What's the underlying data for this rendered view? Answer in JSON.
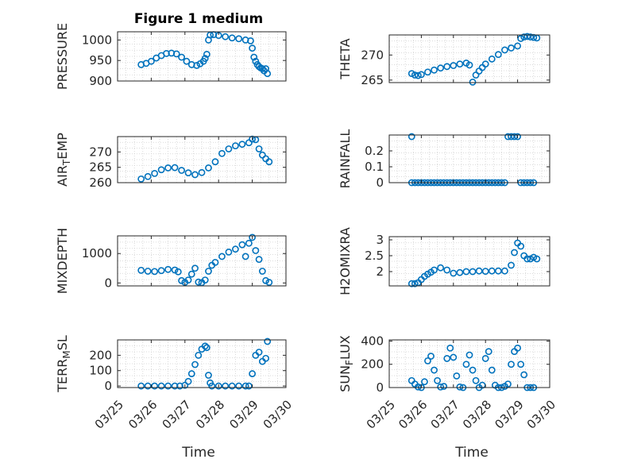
{
  "title": "Figure 1 medium",
  "xlabel": "Time",
  "xticklabels": [
    "03/25",
    "03/26",
    "03/27",
    "03/28",
    "03/29",
    "03/30"
  ],
  "colors": {
    "marker": "#0072BD",
    "axis": "#262626",
    "grid": "#d0d0d0"
  },
  "chart_data": [
    {
      "type": "scatter",
      "ylabel": "PRESSURE",
      "ylabel_sub": "",
      "ylabel_after": "",
      "ylim": [
        900,
        1020
      ],
      "yticks": [
        900,
        950,
        1000
      ],
      "xlim": [
        25,
        30
      ],
      "x": [
        25.7,
        25.85,
        26.0,
        26.15,
        26.3,
        26.45,
        26.6,
        26.75,
        26.9,
        27.05,
        27.2,
        27.35,
        27.45,
        27.55,
        27.6,
        27.65,
        27.7,
        27.75,
        27.85,
        28.0,
        28.2,
        28.4,
        28.6,
        28.8,
        28.95,
        29.0,
        29.05,
        29.1,
        29.15,
        29.2,
        29.25,
        29.3,
        29.35,
        29.4,
        29.45
      ],
      "y": [
        940,
        943,
        948,
        956,
        962,
        967,
        968,
        966,
        958,
        948,
        940,
        938,
        942,
        948,
        955,
        965,
        1000,
        1012,
        1013,
        1011,
        1008,
        1005,
        1003,
        1000,
        998,
        980,
        958,
        948,
        940,
        935,
        932,
        930,
        925,
        930,
        918
      ]
    },
    {
      "type": "scatter",
      "ylabel": "THETA",
      "ylabel_sub": "",
      "ylabel_after": "",
      "ylim": [
        264.5,
        274
      ],
      "yticks": [
        265,
        270
      ],
      "xlim": [
        25,
        30
      ],
      "x": [
        25.7,
        25.8,
        25.9,
        26.0,
        26.2,
        26.4,
        26.6,
        26.8,
        27.0,
        27.2,
        27.4,
        27.5,
        27.6,
        27.7,
        27.8,
        27.9,
        28.0,
        28.2,
        28.4,
        28.6,
        28.8,
        29.0,
        29.1,
        29.2,
        29.3,
        29.4,
        29.5,
        29.6
      ],
      "y": [
        266.3,
        266.0,
        265.9,
        266.1,
        266.6,
        267.0,
        267.4,
        267.7,
        267.9,
        268.2,
        268.4,
        268.0,
        264.6,
        266.0,
        266.8,
        267.5,
        268.2,
        269.2,
        270.1,
        271.0,
        271.4,
        271.8,
        273.3,
        273.6,
        273.7,
        273.6,
        273.5,
        273.4
      ]
    },
    {
      "type": "scatter",
      "ylabel": "AIR",
      "ylabel_sub": "T",
      "ylabel_after": "EMP",
      "ylim": [
        260,
        275
      ],
      "yticks": [
        260,
        265,
        270
      ],
      "xlim": [
        25,
        30
      ],
      "x": [
        25.7,
        25.9,
        26.1,
        26.3,
        26.5,
        26.7,
        26.9,
        27.1,
        27.3,
        27.5,
        27.7,
        27.9,
        28.1,
        28.3,
        28.5,
        28.7,
        28.9,
        29.0,
        29.1,
        29.2,
        29.3,
        29.4,
        29.5
      ],
      "y": [
        261.2,
        262.0,
        263.0,
        264.2,
        264.8,
        264.9,
        264.0,
        263.2,
        262.6,
        263.3,
        264.8,
        266.8,
        269.5,
        271.0,
        272.0,
        272.5,
        273.0,
        274.2,
        274.0,
        271.0,
        269.0,
        267.8,
        266.8
      ]
    },
    {
      "type": "scatter",
      "ylabel": "RAINFALL",
      "ylabel_sub": "",
      "ylabel_after": "",
      "ylim": [
        0,
        0.3
      ],
      "yticks": [
        0,
        0.1,
        0.2
      ],
      "xlim": [
        25,
        30
      ],
      "x": [
        25.7,
        25.7,
        25.8,
        25.9,
        26.0,
        26.1,
        26.2,
        26.3,
        26.4,
        26.5,
        26.6,
        26.7,
        26.8,
        26.9,
        27.0,
        27.1,
        27.2,
        27.3,
        27.4,
        27.5,
        27.6,
        27.7,
        27.8,
        27.9,
        28.0,
        28.1,
        28.2,
        28.3,
        28.4,
        28.5,
        28.6,
        28.7,
        28.8,
        28.9,
        29.0,
        29.1,
        29.2,
        29.3,
        29.4,
        29.5
      ],
      "y": [
        0.29,
        0,
        0,
        0,
        0,
        0,
        0,
        0,
        0,
        0,
        0,
        0,
        0,
        0,
        0,
        0,
        0,
        0,
        0,
        0,
        0,
        0,
        0,
        0,
        0,
        0,
        0,
        0,
        0,
        0,
        0,
        0.29,
        0.29,
        0.29,
        0.29,
        0,
        0,
        0,
        0,
        0
      ]
    },
    {
      "type": "scatter",
      "ylabel": "MIXDEPTH",
      "ylabel_sub": "",
      "ylabel_after": "",
      "ylim": [
        -100,
        1600
      ],
      "yticks": [
        0,
        1000
      ],
      "xlim": [
        25,
        30
      ],
      "x": [
        25.7,
        25.9,
        26.1,
        26.3,
        26.5,
        26.7,
        26.8,
        26.9,
        27.0,
        27.1,
        27.2,
        27.3,
        27.4,
        27.5,
        27.6,
        27.7,
        27.8,
        27.9,
        28.1,
        28.3,
        28.5,
        28.7,
        28.8,
        28.9,
        29.0,
        29.1,
        29.2,
        29.3,
        29.4,
        29.5
      ],
      "y": [
        430,
        400,
        390,
        420,
        460,
        440,
        380,
        80,
        20,
        100,
        300,
        500,
        30,
        10,
        100,
        400,
        600,
        700,
        900,
        1050,
        1150,
        1300,
        900,
        1350,
        1550,
        1100,
        800,
        400,
        80,
        20
      ]
    },
    {
      "type": "scatter",
      "ylabel": "H2OMIXRA",
      "ylabel_sub": "",
      "ylabel_after": "",
      "ylim": [
        1.55,
        3.1
      ],
      "yticks": [
        2,
        2.5,
        3
      ],
      "xlim": [
        25,
        30
      ],
      "x": [
        25.7,
        25.8,
        25.9,
        26.0,
        26.1,
        26.2,
        26.3,
        26.4,
        26.6,
        26.8,
        27.0,
        27.2,
        27.4,
        27.6,
        27.8,
        28.0,
        28.2,
        28.4,
        28.6,
        28.8,
        28.9,
        29.0,
        29.1,
        29.2,
        29.3,
        29.4,
        29.5,
        29.6
      ],
      "y": [
        1.62,
        1.62,
        1.65,
        1.75,
        1.85,
        1.92,
        1.98,
        2.05,
        2.12,
        2.05,
        1.95,
        1.97,
        2.0,
        2.0,
        2.02,
        2.01,
        2.02,
        2.02,
        2.02,
        2.2,
        2.6,
        2.9,
        2.8,
        2.5,
        2.4,
        2.4,
        2.45,
        2.4
      ]
    },
    {
      "type": "scatter",
      "ylabel": "TERR",
      "ylabel_sub": "M",
      "ylabel_after": "SL",
      "ylim": [
        -10,
        300
      ],
      "yticks": [
        0,
        100,
        200
      ],
      "xlim": [
        25,
        30
      ],
      "x": [
        25.7,
        25.9,
        26.1,
        26.3,
        26.5,
        26.7,
        26.85,
        27.0,
        27.1,
        27.2,
        27.3,
        27.4,
        27.5,
        27.6,
        27.65,
        27.7,
        27.75,
        27.8,
        28.0,
        28.2,
        28.4,
        28.6,
        28.8,
        28.9,
        29.0,
        29.1,
        29.2,
        29.3,
        29.4,
        29.45
      ],
      "y": [
        0,
        0,
        0,
        0,
        0,
        0,
        0,
        5,
        30,
        80,
        140,
        200,
        240,
        260,
        250,
        70,
        20,
        0,
        0,
        0,
        0,
        0,
        0,
        0,
        80,
        200,
        220,
        160,
        180,
        290
      ]
    },
    {
      "type": "scatter",
      "ylabel": "SUN",
      "ylabel_sub": "F",
      "ylabel_after": "LUX",
      "ylim": [
        0,
        410
      ],
      "yticks": [
        0,
        200,
        400
      ],
      "xlim": [
        25,
        30
      ],
      "x": [
        25.7,
        25.8,
        25.9,
        26.0,
        26.1,
        26.2,
        26.3,
        26.4,
        26.5,
        26.6,
        26.7,
        26.8,
        26.9,
        27.0,
        27.1,
        27.2,
        27.3,
        27.4,
        27.5,
        27.6,
        27.7,
        27.8,
        27.9,
        28.0,
        28.1,
        28.2,
        28.3,
        28.4,
        28.5,
        28.6,
        28.7,
        28.8,
        28.9,
        29.0,
        29.1,
        29.2,
        29.3,
        29.4,
        29.5
      ],
      "y": [
        60,
        30,
        5,
        0,
        50,
        230,
        270,
        150,
        60,
        5,
        10,
        250,
        340,
        260,
        100,
        5,
        0,
        200,
        280,
        150,
        60,
        0,
        20,
        250,
        310,
        150,
        20,
        0,
        0,
        10,
        30,
        200,
        310,
        340,
        200,
        110,
        0,
        0,
        0
      ]
    }
  ]
}
